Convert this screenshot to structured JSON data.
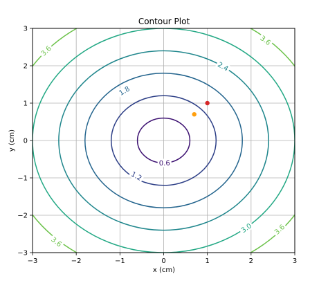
{
  "chart_data": {
    "type": "contour",
    "title": "Contour Plot",
    "xlabel": "x (cm)",
    "ylabel": "y (cm)",
    "xlim": [
      -3,
      3
    ],
    "ylim": [
      -3,
      3
    ],
    "x_ticks": [
      -3,
      -2,
      -1,
      0,
      1,
      2,
      3
    ],
    "y_ticks": [
      -3,
      -2,
      -1,
      0,
      1,
      2,
      3
    ],
    "grid": true,
    "function": "sqrt(x^2 + y^2)",
    "levels": [
      {
        "value": 0.6,
        "label": "0.6",
        "color": "#3b0f70"
      },
      {
        "value": 1.2,
        "label": "1.2",
        "color": "#2c3e86"
      },
      {
        "value": 1.8,
        "label": "1.8",
        "color": "#23648d"
      },
      {
        "value": 2.4,
        "label": "2.4",
        "color": "#1f868c"
      },
      {
        "value": 3.0,
        "label": "3.0",
        "color": "#22a884"
      },
      {
        "value": 3.6,
        "label": "3.6",
        "color": "#6cc24a"
      }
    ],
    "contour_labels": [
      {
        "text": "0.6",
        "level": 0.6,
        "x": 0.02,
        "y": -0.6
      },
      {
        "text": "1.2",
        "level": 1.2,
        "x": -0.62,
        "y": -0.95
      },
      {
        "text": "1.8",
        "level": 1.8,
        "x": -0.9,
        "y": 1.33
      },
      {
        "text": "2.4",
        "level": 2.4,
        "x": 1.36,
        "y": 1.98
      },
      {
        "text": "3.0",
        "level": 3.0,
        "x": 1.89,
        "y": -2.34
      },
      {
        "text": "3.6",
        "level": 3.6,
        "x": -2.69,
        "y": 2.4
      },
      {
        "text": "3.6",
        "level": 3.6,
        "x": 2.33,
        "y": 2.68
      },
      {
        "text": "3.6",
        "level": 3.6,
        "x": -2.45,
        "y": -2.71
      },
      {
        "text": "3.6",
        "level": 3.6,
        "x": 2.65,
        "y": -2.38
      }
    ],
    "points": [
      {
        "x": 1.0,
        "y": 1.0,
        "color": "#d62728"
      },
      {
        "x": 0.7,
        "y": 0.7,
        "color": "#ff9f0e"
      }
    ]
  }
}
